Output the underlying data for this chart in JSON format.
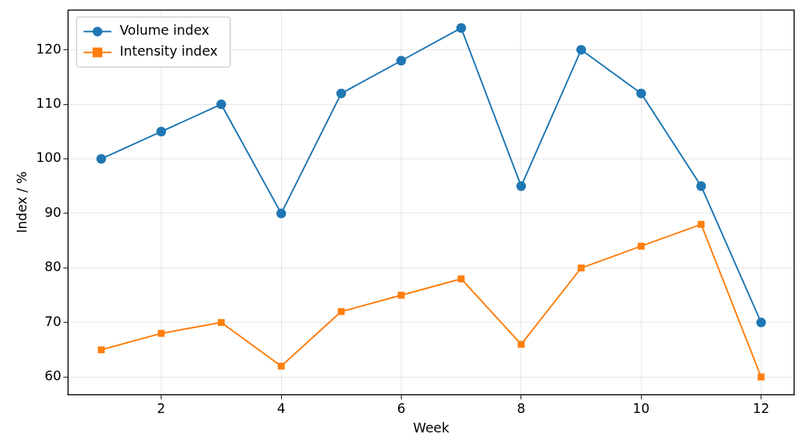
{
  "chart_data": {
    "type": "line",
    "xlabel": "Week",
    "ylabel": "Index / %",
    "x": [
      1,
      2,
      3,
      4,
      5,
      6,
      7,
      8,
      9,
      10,
      11,
      12
    ],
    "series": [
      {
        "name": "Volume index",
        "color": "#1f77b4",
        "marker": "circle",
        "values": [
          100,
          105,
          110,
          90,
          112,
          118,
          124,
          95,
          120,
          112,
          95,
          70
        ]
      },
      {
        "name": "Intensity index",
        "color": "#ff7f0e",
        "marker": "square",
        "values": [
          65,
          68,
          70,
          62,
          72,
          75,
          78,
          66,
          80,
          84,
          88,
          60
        ]
      }
    ],
    "xlim": [
      0.45,
      12.55
    ],
    "xticks": [
      2,
      4,
      6,
      8,
      10,
      12
    ],
    "ylim": [
      56.8,
      127.3
    ],
    "yticks": [
      60,
      70,
      80,
      90,
      100,
      110,
      120
    ],
    "grid": true,
    "legend": "top left",
    "line_style": "solid"
  }
}
